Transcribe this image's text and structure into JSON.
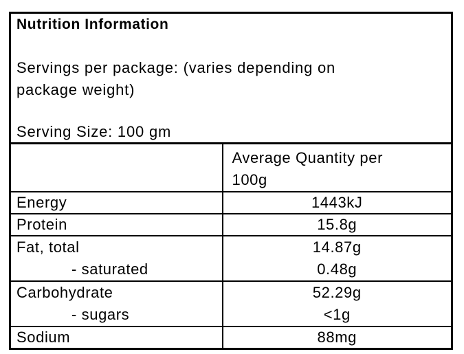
{
  "panel": {
    "title": "Nutrition Information",
    "servings_line1": "Servings per package: (varies depending on",
    "servings_line2": "package weight)",
    "serving_size": "Serving Size: 100 gm"
  },
  "table": {
    "header": {
      "quantity_line1": "Average Quantity per",
      "quantity_line2": "100g"
    },
    "rows": [
      {
        "label": "Energy",
        "value": "1443kJ"
      },
      {
        "label": "Protein",
        "value": "15.8g"
      },
      {
        "label": "Fat, total",
        "value": "14.87g",
        "sub_label": "- saturated",
        "sub_value": "0.48g"
      },
      {
        "label": "Carbohydrate",
        "value": "52.29g",
        "sub_label": "- sugars",
        "sub_value": "<1g"
      },
      {
        "label": "Sodium",
        "value": "88mg"
      }
    ]
  },
  "colors": {
    "border": "#000000",
    "text": "#000000",
    "background": "#ffffff"
  }
}
